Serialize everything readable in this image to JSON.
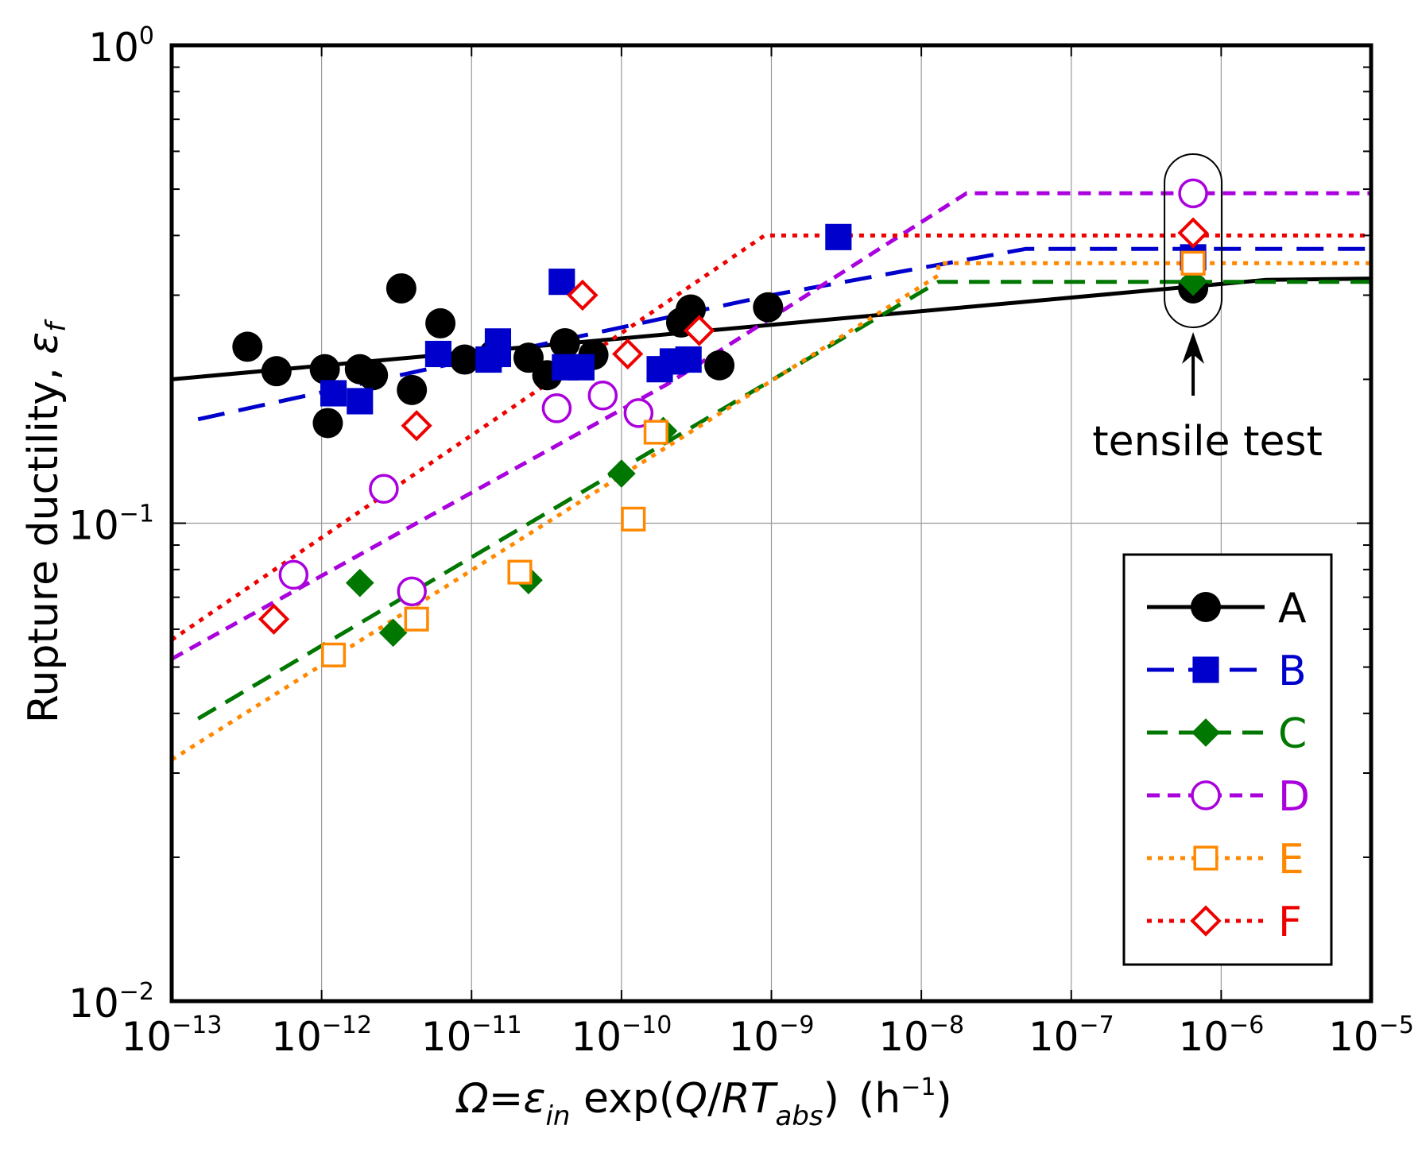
{
  "chart_data": {
    "type": "scatter",
    "title": "",
    "xlabel": {
      "omega": "Ω",
      "eq": "=",
      "epsilon": "ε",
      "in": "in",
      "exp": " exp(",
      "Q": "Q",
      "slash": "/",
      "RT": "RT",
      "abs": "abs",
      "close": ")",
      "unit": "(h",
      "unit_exp": "−1",
      "unit_close": ")"
    },
    "ylabel": {
      "text": "Rupture ductility, ",
      "symbol": "ε",
      "sub": "f"
    },
    "xscale": "log",
    "yscale": "log",
    "xlim": [
      1e-13,
      1e-05
    ],
    "ylim": [
      0.01,
      1
    ],
    "grid": true,
    "xticks": [
      {
        "base": "10",
        "exp": "−13",
        "value": 1e-13
      },
      {
        "base": "10",
        "exp": "−12",
        "value": 1e-12
      },
      {
        "base": "10",
        "exp": "−11",
        "value": 1e-11
      },
      {
        "base": "10",
        "exp": "−10",
        "value": 1e-10
      },
      {
        "base": "10",
        "exp": "−9",
        "value": 1e-09
      },
      {
        "base": "10",
        "exp": "−8",
        "value": 1e-08
      },
      {
        "base": "10",
        "exp": "−7",
        "value": 1e-07
      },
      {
        "base": "10",
        "exp": "−6",
        "value": 1e-06
      },
      {
        "base": "10",
        "exp": "−5",
        "value": 1e-05
      }
    ],
    "yticks": [
      {
        "base": "10",
        "exp": "0",
        "value": 1
      },
      {
        "base": "10",
        "exp": "−1",
        "value": 0.1
      },
      {
        "base": "10",
        "exp": "−2",
        "value": 0.01
      }
    ],
    "legend_position": "bottom-right",
    "series": [
      {
        "name": "A",
        "color": "#000000",
        "marker": "circle",
        "filled": true,
        "dash": "solid",
        "line": [
          [
            1e-13,
            0.2
          ],
          [
            2e-06,
            0.323
          ],
          [
            1e-05,
            0.325
          ]
        ],
        "points": [
          [
            3.2e-13,
            0.234
          ],
          [
            5e-13,
            0.208
          ],
          [
            1.05e-12,
            0.21
          ],
          [
            1.1e-12,
            0.162
          ],
          [
            1.8e-12,
            0.21
          ],
          [
            2.2e-12,
            0.204
          ],
          [
            3.4e-12,
            0.31
          ],
          [
            4e-12,
            0.19
          ],
          [
            6.2e-12,
            0.262
          ],
          [
            9e-12,
            0.22
          ],
          [
            1.4e-11,
            0.225
          ],
          [
            2.4e-11,
            0.222
          ],
          [
            3.2e-11,
            0.204
          ],
          [
            4.2e-11,
            0.238
          ],
          [
            6.5e-11,
            0.225
          ],
          [
            2.5e-10,
            0.263
          ],
          [
            2.9e-10,
            0.28
          ],
          [
            4.5e-10,
            0.214
          ],
          [
            9.5e-10,
            0.283
          ],
          [
            6.5e-07,
            0.31
          ]
        ]
      },
      {
        "name": "B",
        "color": "#0000cc",
        "marker": "square",
        "filled": true,
        "dash": "longdash",
        "line": [
          [
            1.5e-13,
            0.165
          ],
          [
            1e-11,
            0.22
          ],
          [
            1e-09,
            0.3
          ],
          [
            5e-08,
            0.375
          ],
          [
            1e-05,
            0.375
          ]
        ],
        "points": [
          [
            1.2e-12,
            0.187
          ],
          [
            1.8e-12,
            0.18
          ],
          [
            6e-12,
            0.226
          ],
          [
            1.3e-11,
            0.22
          ],
          [
            1.5e-11,
            0.24
          ],
          [
            1.5e-11,
            0.226
          ],
          [
            4e-11,
            0.32
          ],
          [
            4.2e-11,
            0.212
          ],
          [
            5.4e-11,
            0.212
          ],
          [
            1.8e-10,
            0.21
          ],
          [
            2.2e-10,
            0.218
          ],
          [
            2.8e-10,
            0.22
          ],
          [
            2.8e-09,
            0.397
          ],
          [
            6.5e-07,
            0.36
          ]
        ]
      },
      {
        "name": "C",
        "color": "#007700",
        "marker": "diamond",
        "filled": true,
        "dash": "dash",
        "line": [
          [
            1.5e-13,
            0.039
          ],
          [
            1.3e-08,
            0.32
          ],
          [
            1e-05,
            0.32
          ]
        ],
        "points": [
          [
            1.8e-12,
            0.075
          ],
          [
            3e-12,
            0.059
          ],
          [
            2.4e-11,
            0.076
          ],
          [
            1e-10,
            0.127
          ],
          [
            1.9e-10,
            0.156
          ],
          [
            6.5e-07,
            0.32
          ]
        ]
      },
      {
        "name": "D",
        "color": "#aa00dd",
        "marker": "circle",
        "filled": false,
        "dash": "shortdash",
        "line": [
          [
            1e-13,
            0.052
          ],
          [
            2e-10,
            0.195
          ],
          [
            2e-08,
            0.49
          ],
          [
            1e-05,
            0.49
          ]
        ],
        "points": [
          [
            6.5e-13,
            0.078
          ],
          [
            2.6e-12,
            0.118
          ],
          [
            4e-12,
            0.072
          ],
          [
            3.7e-11,
            0.174
          ],
          [
            7.5e-11,
            0.185
          ],
          [
            1.3e-10,
            0.17
          ],
          [
            6.5e-07,
            0.49
          ]
        ]
      },
      {
        "name": "E",
        "color": "#ff8800",
        "marker": "square",
        "filled": false,
        "dash": "dot",
        "line": [
          [
            1e-13,
            0.032
          ],
          [
            1.3e-08,
            0.33
          ],
          [
            1.3e-08,
            0.35
          ],
          [
            1e-05,
            0.35
          ]
        ],
        "points": [
          [
            1.2e-12,
            0.053
          ],
          [
            4.3e-12,
            0.063
          ],
          [
            2.1e-11,
            0.079
          ],
          [
            1.2e-10,
            0.102
          ],
          [
            1.7e-10,
            0.155
          ],
          [
            6.5e-07,
            0.35
          ]
        ]
      },
      {
        "name": "F",
        "color": "#ee0000",
        "marker": "diamond",
        "filled": false,
        "dash": "dot",
        "line": [
          [
            1e-13,
            0.057
          ],
          [
            9e-10,
            0.4
          ],
          [
            1e-05,
            0.4
          ]
        ],
        "points": [
          [
            4.8e-13,
            0.063
          ],
          [
            4.3e-12,
            0.16
          ],
          [
            5.5e-11,
            0.3
          ],
          [
            1.1e-10,
            0.226
          ],
          [
            3.3e-10,
            0.253
          ],
          [
            6.5e-07,
            0.405
          ]
        ]
      }
    ],
    "annotation": {
      "text": "tensile test",
      "x": 6.5e-07
    }
  }
}
